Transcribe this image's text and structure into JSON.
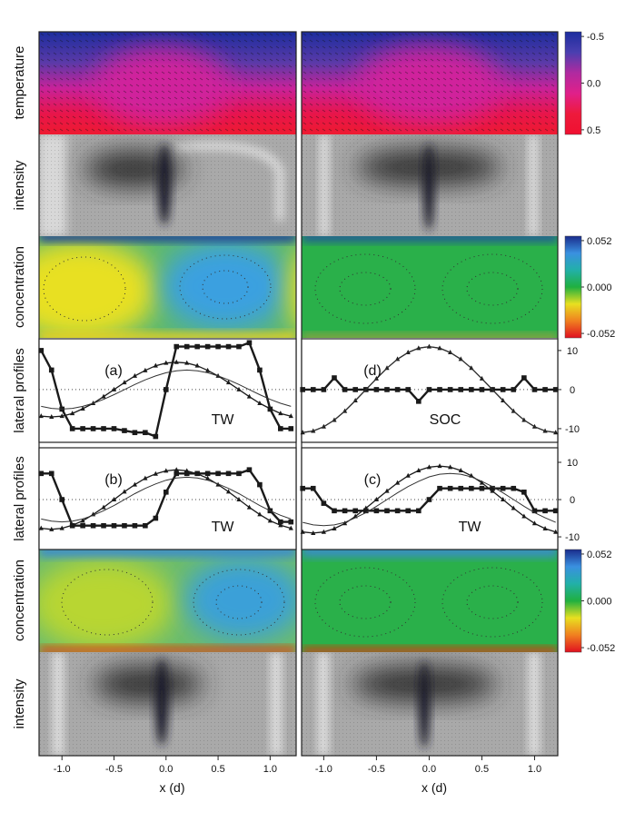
{
  "row_labels": [
    "temperature",
    "intensity",
    "concentration",
    "lateral profiles",
    "lateral profiles",
    "concentration",
    "intensity"
  ],
  "colorbars": [
    {
      "lim": [
        -0.55,
        0.55
      ],
      "ticks": [
        -0.5,
        {
          "value": 0,
          "label": "0.0"
        },
        0.5
      ],
      "colors": [
        "#1c2d9e",
        "#4a3fb0",
        "#b02aa0",
        "#e0208a",
        "#ee1a3c",
        "#f01030"
      ]
    },
    {
      "lim": [
        0.057,
        -0.057
      ],
      "ticks": [
        0.052,
        {
          "value": 0,
          "label": "0.000"
        },
        -0.052
      ],
      "colors": [
        "#1a2c8c",
        "#3a90e0",
        "#22b0a8",
        "#20b040",
        "#e8e020",
        "#f08020",
        "#e01020"
      ]
    },
    {
      "lim": [
        0.057,
        -0.057
      ],
      "ticks": [
        0.052,
        {
          "value": 0,
          "label": "0.000"
        },
        -0.052
      ],
      "colors": [
        "#1a2c8c",
        "#3a90e0",
        "#22b0a8",
        "#20b040",
        "#e8e020",
        "#f08020",
        "#e01020"
      ]
    }
  ],
  "x_axes": [
    {
      "xlim": [
        -1.22,
        1.25
      ],
      "xticks": [
        {
          "value": -1,
          "label": "-1.0"
        },
        -0.5,
        {
          "value": 0,
          "label": "0.0"
        },
        0.5,
        {
          "value": 1,
          "label": "1.0"
        }
      ],
      "label": "x (d)"
    },
    {
      "xlim": [
        -1.21,
        1.22
      ],
      "xticks": [
        {
          "value": -1,
          "label": "-1.0"
        },
        -0.5,
        {
          "value": 0,
          "label": "0.0"
        },
        0.5,
        {
          "value": 1,
          "label": "1.0"
        }
      ],
      "label": "x (d)"
    }
  ],
  "chart_data": [
    {
      "type": "line",
      "ylim": [
        -13.5,
        13
      ],
      "yticks": [
        10,
        0,
        -10
      ],
      "x": [
        -1.2,
        -1.1,
        -1.0,
        -0.9,
        -0.8,
        -0.7,
        -0.6,
        -0.5,
        -0.4,
        -0.3,
        -0.2,
        -0.1,
        0.0,
        0.1,
        0.2,
        0.3,
        0.4,
        0.5,
        0.6,
        0.7,
        0.8,
        0.9,
        1.0,
        1.1,
        1.2
      ],
      "panels": [
        {
          "label": "(a)",
          "annotation": "TW",
          "series": [
            {
              "color": "#1a1a1a",
              "marker": "square",
              "values": [
                10,
                5,
                -5,
                -10,
                -10,
                -10,
                -10,
                -10,
                -10.5,
                -11,
                -11,
                -12,
                0,
                11,
                11,
                11,
                11,
                11,
                11,
                11,
                12,
                5,
                -5,
                -10,
                -10
              ]
            },
            {
              "color": "#1a1a1a",
              "marker": "triangle",
              "values": [
                -6.8,
                -7,
                -6.8,
                -6.1,
                -4.9,
                -3.5,
                -1.8,
                0,
                1.8,
                3.5,
                4.9,
                6.1,
                6.8,
                7,
                6.8,
                6.1,
                4.9,
                3.5,
                1.8,
                0,
                -1.8,
                -3.5,
                -4.9,
                -6.1,
                -6.8
              ]
            },
            {
              "color": "#333333",
              "marker": "none",
              "values": [
                -4.3,
                -4.8,
                -5,
                -4.8,
                -4.3,
                -3.5,
                -2.5,
                -1.3,
                0,
                1.3,
                2.5,
                3.5,
                4.3,
                4.8,
                5,
                4.8,
                4.3,
                3.5,
                2.5,
                1.3,
                0,
                -1.3,
                -2.5,
                -3.5,
                -4.3
              ]
            }
          ]
        },
        {
          "label": "(d)",
          "annotation": "SOC",
          "series": [
            {
              "color": "#1a1a1a",
              "marker": "square",
              "values": [
                0,
                0,
                0,
                3,
                0,
                0,
                0,
                0,
                0,
                0,
                0,
                -3,
                0,
                0,
                0,
                0,
                0,
                0,
                0,
                0,
                0,
                3,
                0,
                0,
                0
              ]
            },
            {
              "color": "#1a1a1a",
              "marker": "triangle",
              "values": [
                -11,
                -10.6,
                -9.5,
                -7.8,
                -5.5,
                -2.8,
                0,
                2.8,
                5.5,
                7.8,
                9.5,
                10.6,
                11,
                10.6,
                9.5,
                7.8,
                5.5,
                2.8,
                0,
                -2.8,
                -5.5,
                -7.8,
                -9.5,
                -10.6,
                -11
              ]
            },
            {
              "color": "#333333",
              "marker": "none",
              "values": [
                -11,
                -10.6,
                -9.5,
                -7.8,
                -5.5,
                -2.8,
                0,
                2.8,
                5.5,
                7.8,
                9.5,
                10.6,
                11,
                10.6,
                9.5,
                7.8,
                5.5,
                2.8,
                0,
                -2.8,
                -5.5,
                -7.8,
                -9.5,
                -10.6,
                -11
              ]
            }
          ]
        }
      ]
    },
    {
      "type": "line",
      "ylim": [
        -13.4,
        13.9
      ],
      "yticks": [
        10,
        0,
        -10
      ],
      "x": [
        -1.2,
        -1.1,
        -1.0,
        -0.9,
        -0.8,
        -0.7,
        -0.6,
        -0.5,
        -0.4,
        -0.3,
        -0.2,
        -0.1,
        0.0,
        0.1,
        0.2,
        0.3,
        0.4,
        0.5,
        0.6,
        0.7,
        0.8,
        0.9,
        1.0,
        1.1,
        1.2
      ],
      "panels": [
        {
          "label": "(b)",
          "annotation": "TW",
          "series": [
            {
              "color": "#1a1a1a",
              "marker": "square",
              "values": [
                7,
                7,
                0,
                -7,
                -7,
                -7,
                -7,
                -7,
                -7,
                -7,
                -7,
                -5,
                2,
                7,
                7,
                7,
                7,
                7,
                7,
                7,
                8,
                4,
                -3,
                -6,
                -6
              ]
            },
            {
              "color": "#1a1a1a",
              "marker": "triangle",
              "values": [
                -7.7,
                -8,
                -7.7,
                -6.9,
                -5.7,
                -4,
                -2.1,
                0,
                2.1,
                4,
                5.7,
                6.9,
                7.7,
                8,
                7.7,
                6.9,
                5.7,
                4,
                2.1,
                0,
                -2.1,
                -4,
                -5.7,
                -6.9,
                -7.7
              ]
            },
            {
              "color": "#333333",
              "marker": "none",
              "values": [
                -5.2,
                -5.8,
                -6,
                -5.8,
                -5.2,
                -4.2,
                -3,
                -1.6,
                0,
                1.6,
                3,
                4.2,
                5.2,
                5.8,
                6,
                5.8,
                5.2,
                4.2,
                3,
                1.6,
                0,
                -1.6,
                -3,
                -4.2,
                -5.2
              ]
            }
          ]
        },
        {
          "label": "(c)",
          "annotation": "TW",
          "series": [
            {
              "color": "#1a1a1a",
              "marker": "square",
              "values": [
                3,
                3,
                -1,
                -3,
                -3,
                -3,
                -3,
                -3,
                -3,
                -3,
                -3,
                -3,
                0,
                3,
                3,
                3,
                3,
                3,
                3,
                3,
                3,
                2,
                -3,
                -3,
                -3
              ]
            },
            {
              "color": "#1a1a1a",
              "marker": "triangle",
              "values": [
                -8.7,
                -9,
                -8.7,
                -7.8,
                -6.4,
                -4.5,
                -2.3,
                0,
                2.3,
                4.5,
                6.4,
                7.8,
                8.7,
                9,
                8.7,
                7.8,
                6.4,
                4.5,
                2.3,
                0,
                -2.3,
                -4.5,
                -6.4,
                -7.8,
                -8.7
              ]
            },
            {
              "color": "#333333",
              "marker": "none",
              "values": [
                -6.1,
                -6.8,
                -7,
                -6.8,
                -6.1,
                -4.9,
                -3.5,
                -1.8,
                0,
                1.8,
                3.5,
                4.9,
                6.1,
                6.8,
                7,
                6.8,
                6.1,
                4.9,
                3.5,
                1.8,
                0,
                -1.8,
                -3.5,
                -4.9,
                -6.1
              ]
            }
          ]
        }
      ]
    }
  ]
}
